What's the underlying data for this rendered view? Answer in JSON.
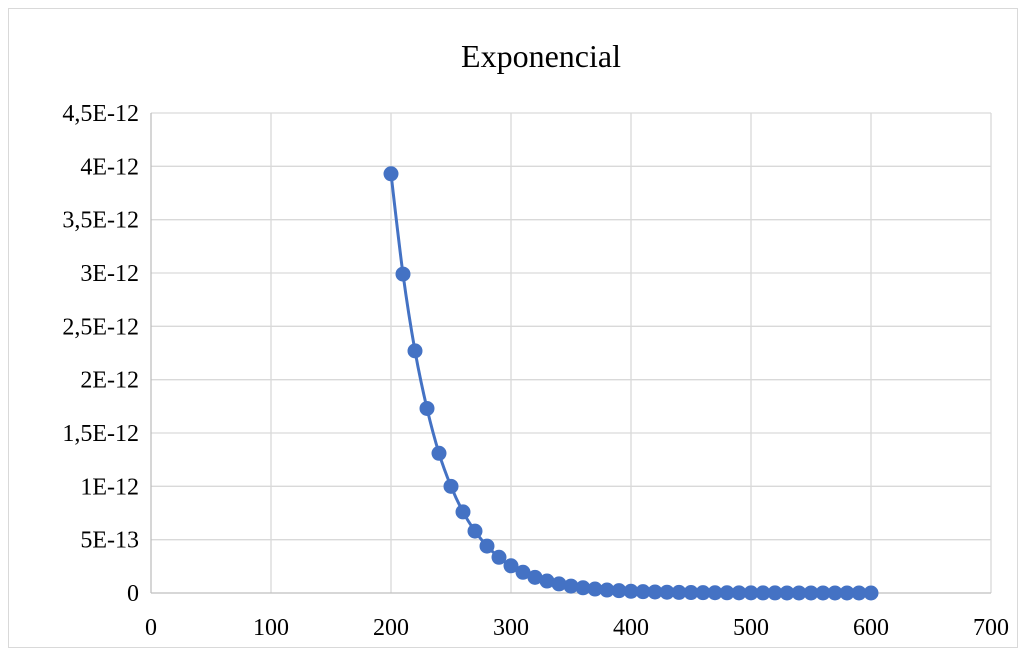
{
  "chart_data": {
    "type": "scatter",
    "title": "Exponencial",
    "xlabel": "",
    "ylabel": "",
    "xlim": [
      0,
      700
    ],
    "ylim": [
      0,
      4.5e-12
    ],
    "x_ticks": [
      0,
      100,
      200,
      300,
      400,
      500,
      600,
      700
    ],
    "x_tick_labels": [
      "0",
      "100",
      "200",
      "300",
      "400",
      "500",
      "600",
      "700"
    ],
    "y_ticks": [
      0,
      5e-13,
      1e-12,
      1.5e-12,
      2e-12,
      2.5e-12,
      3e-12,
      3.5e-12,
      4e-12,
      4.5e-12
    ],
    "y_tick_labels": [
      "0",
      "5E-13",
      "1E-12",
      "1,5E-12",
      "2E-12",
      "2,5E-12",
      "3E-12",
      "3,5E-12",
      "4E-12",
      "4,5E-12"
    ],
    "grid": true,
    "legend": "none",
    "series": [
      {
        "color": "#4472C4",
        "marker": "circle",
        "smooth_line": true,
        "x": [
          200,
          210,
          220,
          230,
          240,
          250,
          260,
          270,
          280,
          290,
          300,
          310,
          320,
          330,
          340,
          350,
          360,
          370,
          380,
          390,
          400,
          410,
          420,
          430,
          440,
          450,
          460,
          470,
          480,
          490,
          500,
          510,
          520,
          530,
          540,
          550,
          560,
          570,
          580,
          590,
          600
        ],
        "y": [
          3.93e-12,
          2.99e-12,
          2.27e-12,
          1.73e-12,
          1.31e-12,
          1e-12,
          7.6e-13,
          5.8e-13,
          4.4e-13,
          3.35e-13,
          2.55e-13,
          1.94e-13,
          1.47e-13,
          1.12e-13,
          8.5e-14,
          6.5e-14,
          4.9e-14,
          3.7e-14,
          2.8e-14,
          2.2e-14,
          1.6e-14,
          1.25e-14,
          9.5e-15,
          7.2e-15,
          5.5e-15,
          4.2e-15,
          3.2e-15,
          2.4e-15,
          1.8e-15,
          1.4e-15,
          1.1e-15,
          8e-16,
          6e-16,
          4.7e-16,
          3.6e-16,
          2.7e-16,
          2.1e-16,
          1.6e-16,
          1.2e-16,
          9e-17,
          7e-17
        ]
      }
    ]
  }
}
